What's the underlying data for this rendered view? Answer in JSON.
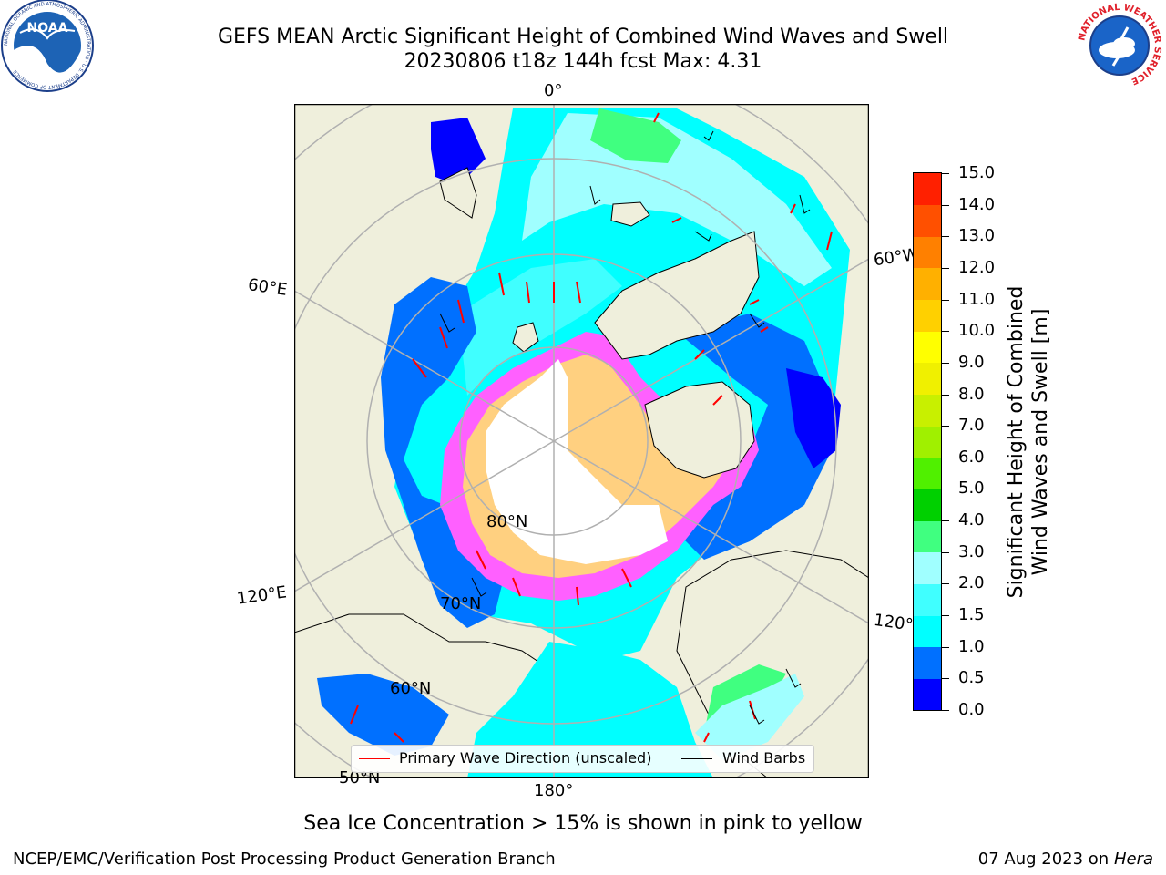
{
  "header": {
    "title_line1": "GEFS MEAN Arctic Significant Height of Combined Wind Waves and Swell",
    "title_line2": "20230806 t18z 144h fcst   Max: 4.31"
  },
  "logos": {
    "left": {
      "text": "NOAA",
      "ring_text": "NATIONAL OCEANIC AND ATMOSPHERIC ADMINISTRATION · U.S. DEPARTMENT OF COMMERCE"
    },
    "right": {
      "ring_text": "NATIONAL WEATHER SERVICE"
    }
  },
  "map": {
    "projection": "north-polar-stereographic",
    "longitude_labels": [
      "0°",
      "60°W",
      "120°W",
      "180°",
      "120°E",
      "60°E"
    ],
    "latitude_labels": [
      "80°N",
      "70°N",
      "60°N",
      "50°N"
    ],
    "colors": {
      "land": "#efefdc",
      "ice_low": "#ff40ff",
      "ice_high": "#ffd060",
      "grid": "#b0b0b0",
      "arrow": "#ff0000",
      "barb": "#000000"
    }
  },
  "colorbar": {
    "label_line1": "Significant Height of Combined",
    "label_line2": "Wind Waves and Swell [m]",
    "ticks": [
      "15.0",
      "14.0",
      "13.0",
      "12.0",
      "11.0",
      "10.0",
      "9.0",
      "8.0",
      "7.0",
      "6.0",
      "5.0",
      "4.0",
      "3.0",
      "2.0",
      "1.5",
      "1.0",
      "0.5",
      "0.0"
    ],
    "colors": [
      "#0000ff",
      "#0070ff",
      "#00ffff",
      "#40ffff",
      "#a0ffff",
      "#40ff80",
      "#00d000",
      "#50f000",
      "#a0f000",
      "#c8f000",
      "#f0f000",
      "#ffff00",
      "#ffd000",
      "#ffb000",
      "#ff8000",
      "#ff5000",
      "#ff2000"
    ]
  },
  "legend": {
    "primary_wave": "Primary Wave Direction (unscaled)",
    "wind_barbs": "Wind Barbs"
  },
  "footer": {
    "note": "Sea Ice Concentration > 15% is shown in pink to yellow",
    "left": "NCEP/EMC/Verification Post Processing Product Generation Branch",
    "right_date": "07 Aug 2023 on",
    "right_host": "Hera"
  }
}
